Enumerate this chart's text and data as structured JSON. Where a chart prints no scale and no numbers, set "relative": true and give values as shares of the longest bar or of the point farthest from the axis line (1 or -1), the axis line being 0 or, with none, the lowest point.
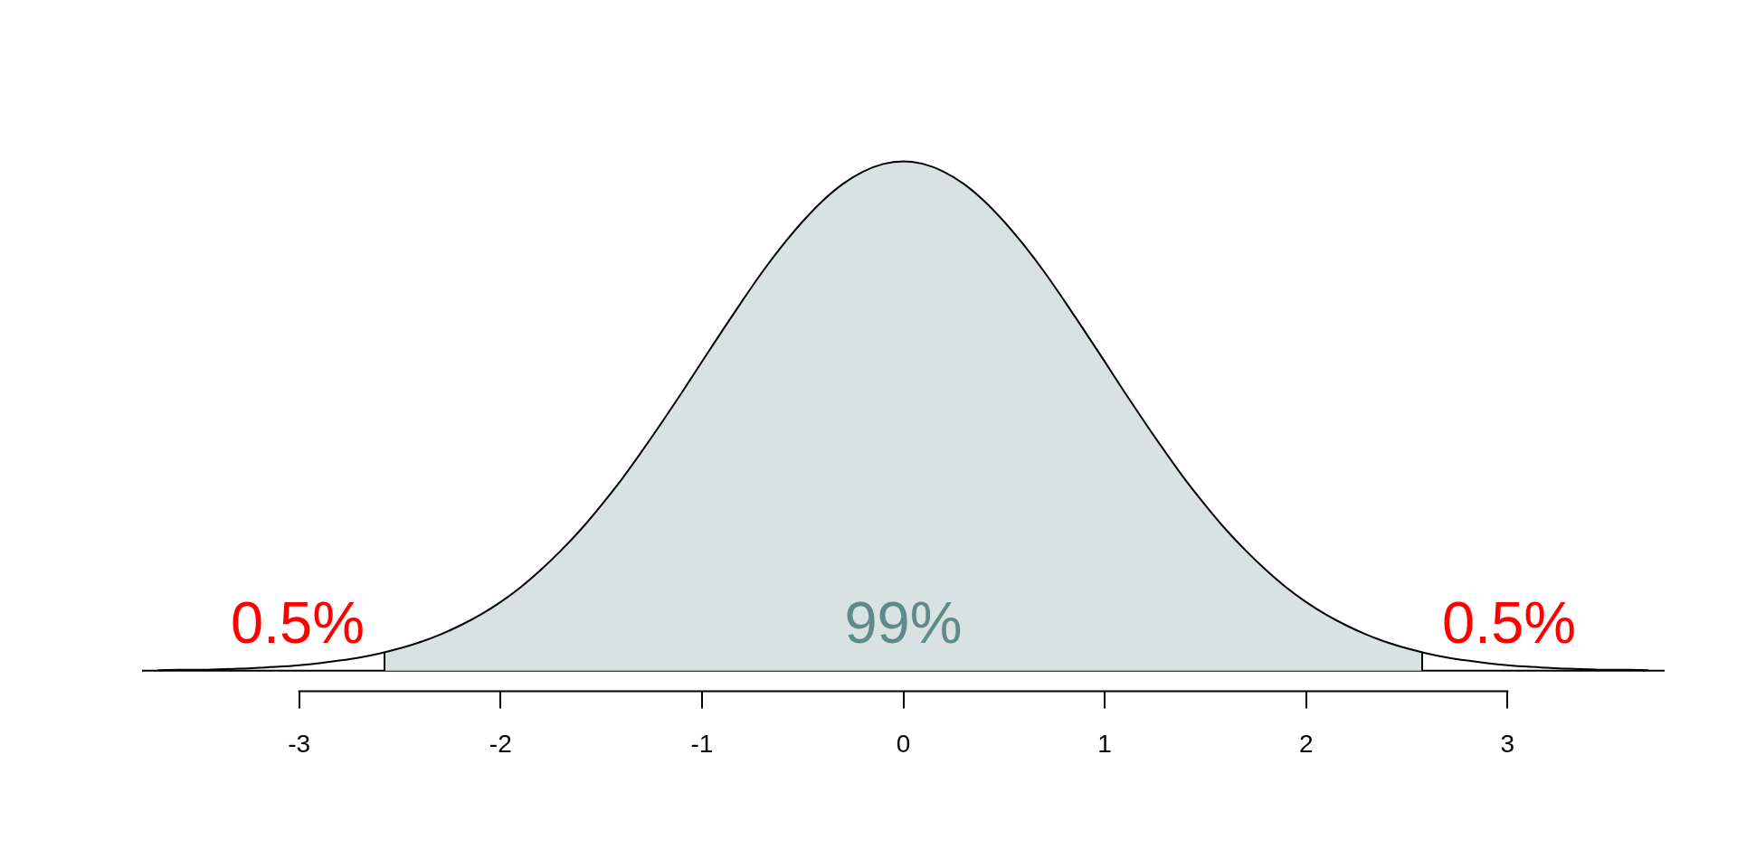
{
  "chart_data": {
    "type": "line",
    "relative": true,
    "marker": "none",
    "xlim": [
      -3.78,
      3.78
    ],
    "xticks": [
      -3,
      -2,
      -1,
      0,
      1,
      2,
      3
    ],
    "series": [
      {
        "type": "area",
        "color": "#d9e2e2",
        "x": [
          -2.576,
          -2.5,
          -2.4,
          -2.3,
          -2.2,
          -2.1,
          -2.0,
          -1.9,
          -1.8,
          -1.7,
          -1.6,
          -1.5,
          -1.4,
          -1.3,
          -1.2,
          -1.1,
          -1.0,
          -0.9,
          -0.8,
          -0.7,
          -0.6,
          -0.5,
          -0.4,
          -0.3,
          -0.2,
          -0.1,
          0,
          0.1,
          0.2,
          0.3,
          0.4,
          0.5,
          0.6,
          0.7,
          0.8,
          0.9,
          1.0,
          1.1,
          1.2,
          1.3,
          1.4,
          1.5,
          1.6,
          1.7,
          1.8,
          1.9,
          2.0,
          2.1,
          2.2,
          2.3,
          2.4,
          2.5,
          2.576
        ],
        "values": [
          0.036,
          0.044,
          0.056,
          0.071,
          0.089,
          0.11,
          0.135,
          0.164,
          0.198,
          0.236,
          0.278,
          0.325,
          0.375,
          0.43,
          0.487,
          0.546,
          0.607,
          0.667,
          0.726,
          0.783,
          0.835,
          0.882,
          0.923,
          0.956,
          0.98,
          0.995,
          1,
          0.995,
          0.98,
          0.956,
          0.923,
          0.882,
          0.835,
          0.783,
          0.726,
          0.667,
          0.607,
          0.546,
          0.487,
          0.43,
          0.375,
          0.325,
          0.278,
          0.236,
          0.198,
          0.164,
          0.135,
          0.11,
          0.089,
          0.071,
          0.056,
          0.044,
          0.036
        ]
      },
      {
        "type": "line",
        "color": "#000000",
        "x": [
          -3.7,
          -3.6,
          -3.5,
          -3.4,
          -3.3,
          -3.2,
          -3.1,
          -3.0,
          -2.9,
          -2.8,
          -2.7,
          -2.6,
          -2.5,
          -2.4,
          -2.3,
          -2.2,
          -2.1,
          -2.0,
          -1.9,
          -1.8,
          -1.7,
          -1.6,
          -1.5,
          -1.4,
          -1.3,
          -1.2,
          -1.1,
          -1.0,
          -0.9,
          -0.8,
          -0.7,
          -0.6,
          -0.5,
          -0.4,
          -0.3,
          -0.2,
          -0.1,
          0,
          0.1,
          0.2,
          0.3,
          0.4,
          0.5,
          0.6,
          0.7,
          0.8,
          0.9,
          1.0,
          1.1,
          1.2,
          1.3,
          1.4,
          1.5,
          1.6,
          1.7,
          1.8,
          1.9,
          2.0,
          2.1,
          2.2,
          2.3,
          2.4,
          2.5,
          2.6,
          2.7,
          2.8,
          2.9,
          3.0,
          3.1,
          3.2,
          3.3,
          3.4,
          3.5,
          3.6,
          3.7
        ],
        "values": [
          0.001,
          0.002,
          0.002,
          0.003,
          0.004,
          0.006,
          0.008,
          0.011,
          0.015,
          0.02,
          0.026,
          0.034,
          0.044,
          0.056,
          0.071,
          0.089,
          0.11,
          0.135,
          0.164,
          0.198,
          0.236,
          0.278,
          0.325,
          0.375,
          0.43,
          0.487,
          0.546,
          0.607,
          0.667,
          0.726,
          0.783,
          0.835,
          0.882,
          0.923,
          0.956,
          0.98,
          0.995,
          1,
          0.995,
          0.98,
          0.956,
          0.923,
          0.882,
          0.835,
          0.783,
          0.726,
          0.667,
          0.607,
          0.546,
          0.487,
          0.43,
          0.375,
          0.325,
          0.278,
          0.236,
          0.198,
          0.164,
          0.135,
          0.11,
          0.089,
          0.071,
          0.056,
          0.044,
          0.034,
          0.026,
          0.02,
          0.015,
          0.011,
          0.008,
          0.006,
          0.004,
          0.003,
          0.002,
          0.002,
          0.001
        ]
      }
    ],
    "ref_lines": [
      {
        "axis": "y",
        "value": 0,
        "color": "#000000"
      }
    ],
    "annotations": [
      "0.5%",
      "99%",
      "0.5%"
    ]
  }
}
